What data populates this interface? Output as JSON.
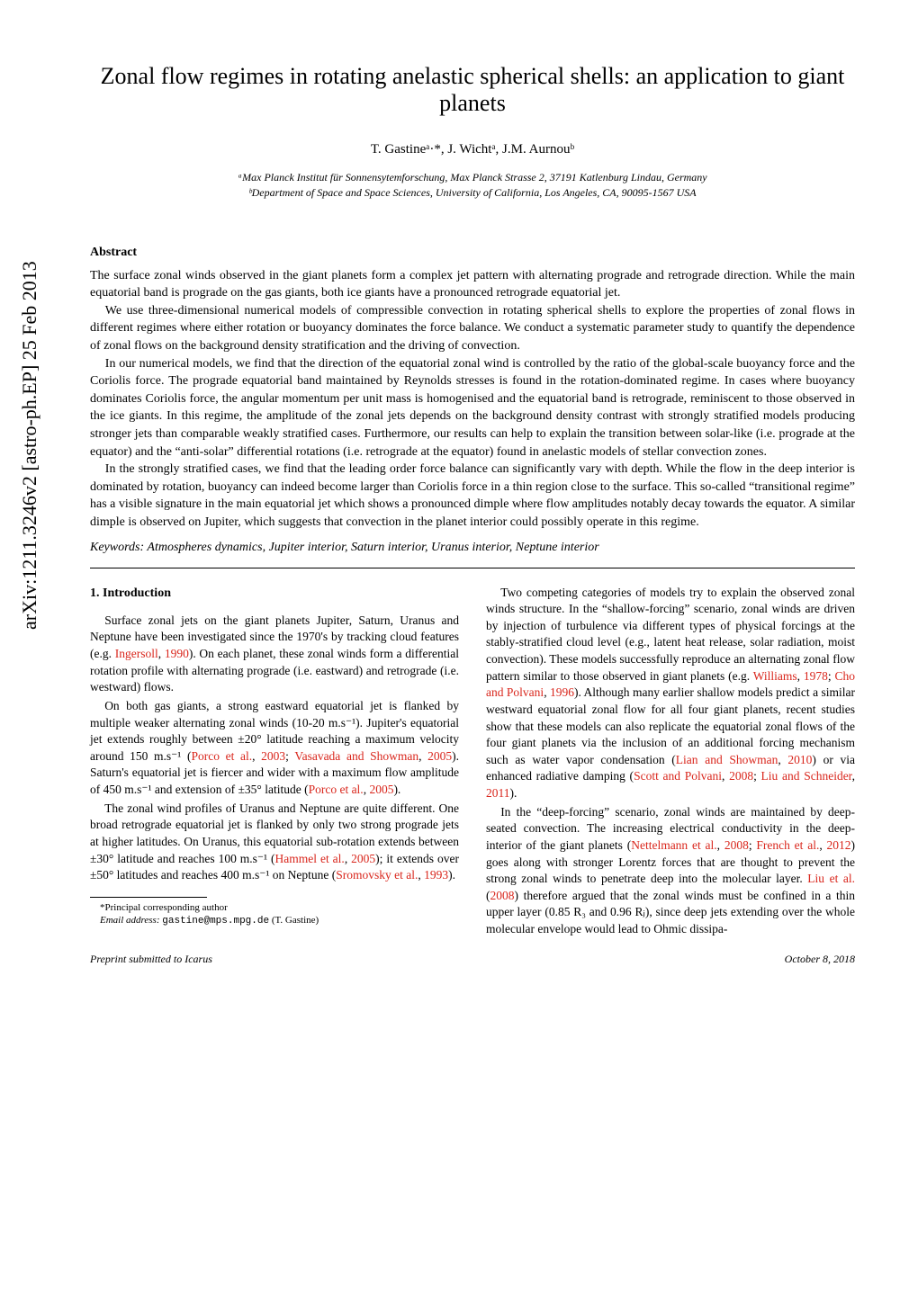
{
  "arxiv_stamp": "arXiv:1211.3246v2  [astro-ph.EP]  25 Feb 2013",
  "title": "Zonal flow regimes in rotating anelastic spherical shells: an application to giant planets",
  "authors": "T. Gastineᵃ·*, J. Wichtᵃ, J.M. Aurnouᵇ",
  "affiliations": {
    "a": "ᵃMax Planck Institut für Sonnensytemforschung, Max Planck Strasse 2, 37191 Katlenburg Lindau, Germany",
    "b": "ᵇDepartment of Space and Space Sciences, University of California, Los Angeles, CA, 90095-1567 USA"
  },
  "abstract_heading": "Abstract",
  "abstract": {
    "p1": "The surface zonal winds observed in the giant planets form a complex jet pattern with alternating prograde and retrograde direction. While the main equatorial band is prograde on the gas giants, both ice giants have a pronounced retrograde equatorial jet.",
    "p2": "We use three-dimensional numerical models of compressible convection in rotating spherical shells to explore the properties of zonal flows in different regimes where either rotation or buoyancy dominates the force balance. We conduct a systematic parameter study to quantify the dependence of zonal flows on the background density stratification and the driving of convection.",
    "p3": "In our numerical models, we find that the direction of the equatorial zonal wind is controlled by the ratio of the global-scale buoyancy force and the Coriolis force. The prograde equatorial band maintained by Reynolds stresses is found in the rotation-dominated regime. In cases where buoyancy dominates Coriolis force, the angular momentum per unit mass is homogenised and the equatorial band is retrograde, reminiscent to those observed in the ice giants. In this regime, the amplitude of the zonal jets depends on the background density contrast with strongly stratified models producing stronger jets than comparable weakly stratified cases. Furthermore, our results can help to explain the transition between solar-like (i.e. prograde at the equator) and the “anti-solar” differential rotations (i.e. retrograde at the equator) found in anelastic models of stellar convection zones.",
    "p4": "In the strongly stratified cases, we find that the leading order force balance can significantly vary with depth. While the flow in the deep interior is dominated by rotation, buoyancy can indeed become larger than Coriolis force in a thin region close to the surface. This so-called “transitional regime” has a visible signature in the main equatorial jet which shows a pronounced dimple where flow amplitudes notably decay towards the equator. A similar dimple is observed on Jupiter, which suggests that convection in the planet interior could possibly operate in this regime."
  },
  "keywords_label": "Keywords:",
  "keywords_text": " Atmospheres dynamics, Jupiter interior, Saturn interior, Uranus interior, Neptune interior",
  "section1_heading": "1. Introduction",
  "left": {
    "p1a": "Surface zonal jets on the giant planets Jupiter, Saturn, Uranus and Neptune have been investigated since the 1970's by tracking cloud features (e.g. ",
    "p1_ref1": "Ingersoll",
    "p1b": ", ",
    "p1_ref2": "1990",
    "p1c": "). On each planet, these zonal winds form a differential rotation profile with alternating prograde (i.e. eastward) and retrograde (i.e. westward) flows.",
    "p2a": "On both gas giants, a strong eastward equatorial jet is flanked by multiple weaker alternating zonal winds (10-20 m.s⁻¹). Jupiter's equatorial jet extends roughly between ±20° latitude reaching a maximum velocity around 150 m.s⁻¹ (",
    "p2_ref1": "Porco et al.",
    "p2b": ", ",
    "p2_ref2": "2003",
    "p2c": "; ",
    "p2_ref3": "Vasavada and Showman",
    "p2d": ", ",
    "p2_ref4": "2005",
    "p2e": "). Saturn's equatorial jet is fiercer and wider with a maximum flow amplitude of 450 m.s⁻¹ and extension of ±35° latitude (",
    "p2_ref5": "Porco et al.",
    "p2f": ", ",
    "p2_ref6": "2005",
    "p2g": ").",
    "p3a": "The zonal wind profiles of Uranus and Neptune are quite different. One broad retrograde equatorial jet is flanked by only two strong prograde jets at higher latitudes. On Uranus, this equatorial sub-rotation extends between ±30° latitude and reaches 100 m.s⁻¹ (",
    "p3_ref1": "Hammel et al.",
    "p3b": ", ",
    "p3_ref2": "2005",
    "p3c": "); it extends over ±50° latitudes and reaches 400 m.s⁻¹ on Neptune (",
    "p3_ref3": "Sromovsky et al.",
    "p3d": ", ",
    "p3_ref4": "1993",
    "p3e": ")."
  },
  "right": {
    "p1a": "Two competing categories of models try to explain the observed zonal winds structure. In the “shallow-forcing” scenario, zonal winds are driven by injection of turbulence via different types of physical forcings at the stably-stratified cloud level (e.g., latent heat release, solar radiation, moist convection). These models successfully reproduce an alternating zonal flow pattern similar to those observed in giant planets (e.g. ",
    "p1_ref1": "Williams",
    "p1b": ", ",
    "p1_ref2": "1978",
    "p1c": "; ",
    "p1_ref3": "Cho and Polvani",
    "p1d": ", ",
    "p1_ref4": "1996",
    "p1e": "). Although many earlier shallow models predict a similar westward equatorial zonal flow for all four giant planets, recent studies show that these models can also replicate the equatorial zonal flows of the four giant planets via the inclusion of an additional forcing mechanism such as water vapor condensation (",
    "p1_ref5": "Lian and Showman",
    "p1f": ", ",
    "p1_ref6": "2010",
    "p1g": ") or via enhanced radiative damping (",
    "p1_ref7": "Scott and Polvani",
    "p1h": ", ",
    "p1_ref8": "2008",
    "p1i": "; ",
    "p1_ref9": "Liu and Schneider",
    "p1j": ", ",
    "p1_ref10": "2011",
    "p1k": ").",
    "p2a": "In the “deep-forcing” scenario, zonal winds are maintained by deep-seated convection. The increasing electrical conductivity in the deep-interior of the giant planets (",
    "p2_ref1": "Nettelmann et al.",
    "p2b": ", ",
    "p2_ref2": "2008",
    "p2c": "; ",
    "p2_ref3": "French et al.",
    "p2d": ", ",
    "p2_ref4": "2012",
    "p2e": ") goes along with stronger Lorentz forces that are thought to prevent the strong zonal winds to penetrate deep into the molecular layer. ",
    "p2_ref5": "Liu et al.",
    "p2f": " (",
    "p2_ref6": "2008",
    "p2g": ") therefore argued that the zonal winds must be confined in a thin upper layer (0.85 R₃ and 0.96 Rⱼ), since deep jets extending over the whole molecular envelope would lead to Ohmic dissipa-"
  },
  "footnote": {
    "l1": "*Principal corresponding author",
    "l2a": "Email address: ",
    "l2_mono": "gastine@mps.mpg.de",
    "l2b": " (T. Gastine)"
  },
  "footer": {
    "left": "Preprint submitted to Icarus",
    "right": "October 8, 2018"
  }
}
